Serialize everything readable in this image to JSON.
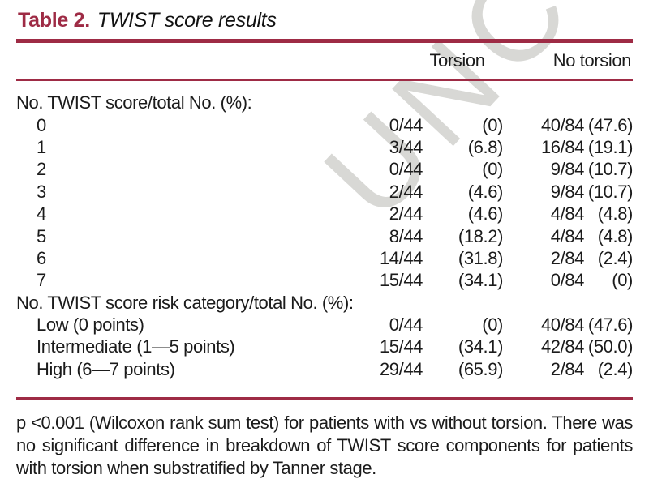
{
  "title": {
    "label": "Table 2.",
    "caption": "TWIST score results"
  },
  "colors": {
    "accent": "#9e2b45",
    "text": "#1b1b1b",
    "watermark": "#d8d8d5"
  },
  "watermark": {
    "text": "UNCO"
  },
  "table": {
    "columns": [
      "Torsion",
      "No torsion"
    ],
    "sections": [
      {
        "header": "No. TWIST score/total No. (%):",
        "rows": [
          {
            "label": "0",
            "t_frac": "0/44",
            "t_pct": "(0)",
            "nt_frac": "40/84",
            "nt_pct": "(47.6)"
          },
          {
            "label": "1",
            "t_frac": "3/44",
            "t_pct": "(6.8)",
            "nt_frac": "16/84",
            "nt_pct": "(19.1)"
          },
          {
            "label": "2",
            "t_frac": "0/44",
            "t_pct": "(0)",
            "nt_frac": "9/84",
            "nt_pct": "(10.7)"
          },
          {
            "label": "3",
            "t_frac": "2/44",
            "t_pct": "(4.6)",
            "nt_frac": "9/84",
            "nt_pct": "(10.7)"
          },
          {
            "label": "4",
            "t_frac": "2/44",
            "t_pct": "(4.6)",
            "nt_frac": "4/84",
            "nt_pct": "(4.8)"
          },
          {
            "label": "5",
            "t_frac": "8/44",
            "t_pct": "(18.2)",
            "nt_frac": "4/84",
            "nt_pct": "(4.8)"
          },
          {
            "label": "6",
            "t_frac": "14/44",
            "t_pct": "(31.8)",
            "nt_frac": "2/84",
            "nt_pct": "(2.4)"
          },
          {
            "label": "7",
            "t_frac": "15/44",
            "t_pct": "(34.1)",
            "nt_frac": "0/84",
            "nt_pct": "(0)"
          }
        ]
      },
      {
        "header": "No. TWIST score risk category/total No. (%):",
        "rows": [
          {
            "label": "Low (0 points)",
            "t_frac": "0/44",
            "t_pct": "(0)",
            "nt_frac": "40/84",
            "nt_pct": "(47.6)"
          },
          {
            "label": "Intermediate (1—5 points)",
            "t_frac": "15/44",
            "t_pct": "(34.1)",
            "nt_frac": "42/84",
            "nt_pct": "(50.0)"
          },
          {
            "label": "High (6—7 points)",
            "t_frac": "29/44",
            "t_pct": "(65.9)",
            "nt_frac": "2/84",
            "nt_pct": "(2.4)"
          }
        ]
      }
    ]
  },
  "footnote": {
    "lines": [
      "p <0.001 (Wilcoxon rank sum test) for patients with vs without torsion. There was",
      "no significant difference in breakdown of TWIST score components for patients",
      "with torsion when substratified by Tanner stage."
    ]
  }
}
